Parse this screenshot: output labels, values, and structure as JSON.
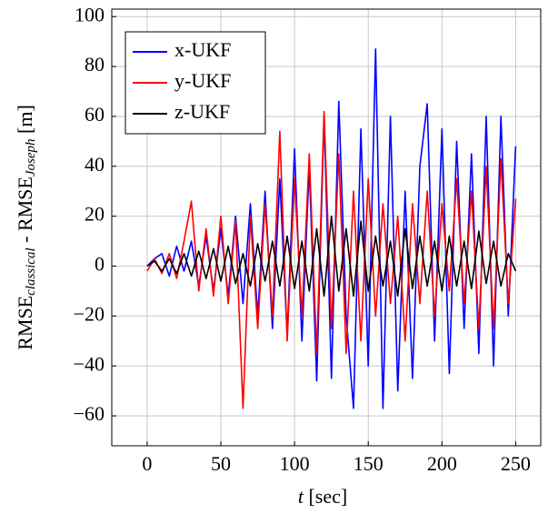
{
  "chart_data": {
    "type": "line",
    "xlabel": {
      "var": "t",
      "unit": " [sec]"
    },
    "ylabel": {
      "a": "RMSE",
      "a_sub": "classical",
      "b": " - RMSE",
      "b_sub": "Joseph",
      "unit": " [m]"
    },
    "x": [
      0,
      5,
      10,
      15,
      20,
      25,
      30,
      35,
      40,
      45,
      50,
      55,
      60,
      65,
      70,
      75,
      80,
      85,
      90,
      95,
      100,
      105,
      110,
      115,
      120,
      125,
      130,
      135,
      140,
      145,
      150,
      155,
      160,
      165,
      170,
      175,
      180,
      185,
      190,
      195,
      200,
      205,
      210,
      215,
      220,
      225,
      230,
      235,
      240,
      245,
      250
    ],
    "series": [
      {
        "name": "x-UKF",
        "color": "#0000ff",
        "values": [
          0,
          3,
          5,
          -4,
          8,
          -2,
          10,
          -8,
          12,
          -10,
          15,
          -12,
          20,
          -15,
          25,
          -20,
          30,
          -25,
          35,
          -28,
          47,
          -30,
          40,
          -46,
          60,
          -45,
          66,
          -20,
          -57,
          55,
          -40,
          87,
          -57,
          60,
          -50,
          30,
          -45,
          40,
          65,
          -30,
          55,
          -43,
          50,
          -25,
          45,
          -35,
          60,
          -40,
          60,
          -20,
          48
        ]
      },
      {
        "name": "y-UKF",
        "color": "#ff0000",
        "values": [
          -2,
          3,
          -3,
          5,
          -5,
          10,
          26,
          -10,
          15,
          -12,
          20,
          -15,
          18,
          -57,
          20,
          -25,
          25,
          -20,
          54,
          -30,
          35,
          -20,
          45,
          -35,
          62,
          -25,
          45,
          -35,
          30,
          -30,
          35,
          -20,
          25,
          -15,
          20,
          -30,
          25,
          -15,
          30,
          -20,
          25,
          -10,
          35,
          -15,
          30,
          -25,
          40,
          -25,
          43,
          -15,
          27
        ]
      },
      {
        "name": "z-UKF",
        "color": "#000000",
        "values": [
          0,
          2,
          -2,
          3,
          -3,
          5,
          -4,
          6,
          -5,
          7,
          -6,
          8,
          -7,
          5,
          -8,
          9,
          -6,
          10,
          -8,
          12,
          -9,
          10,
          -10,
          15,
          -12,
          20,
          -10,
          15,
          -12,
          18,
          -10,
          12,
          -8,
          10,
          -12,
          15,
          -9,
          12,
          -8,
          10,
          -10,
          12,
          -8,
          10,
          -9,
          14,
          -7,
          10,
          -8,
          5,
          -2
        ]
      }
    ],
    "xlim": [
      -24,
      267
    ],
    "ylim": [
      -72,
      103
    ],
    "xticks": [
      0,
      50,
      100,
      150,
      200,
      250
    ],
    "yticks": [
      {
        "value": -60,
        "label": "−60"
      },
      {
        "value": -40,
        "label": "−40"
      },
      {
        "value": -20,
        "label": "−20"
      },
      0,
      20,
      40,
      60,
      80,
      100
    ],
    "grid": true,
    "legend": "top-left"
  }
}
